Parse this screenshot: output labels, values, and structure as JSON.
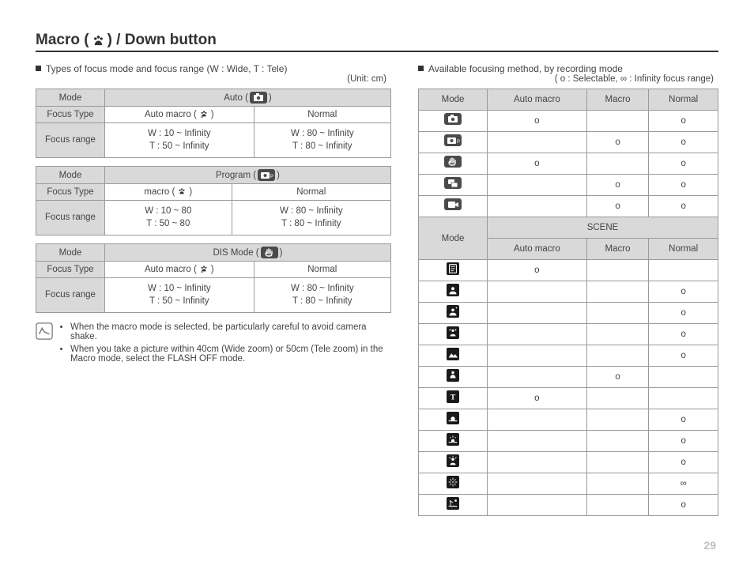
{
  "title_prefix": "Macro (",
  "title_suffix": ") / Down button",
  "page_number": "29",
  "left": {
    "lead": "Types of focus mode and focus range (W : Wide, T : Tele)",
    "unit": "(Unit: cm)",
    "tables": [
      {
        "mode_label": "Mode",
        "mode_val_prefix": "Auto (",
        "mode_val_suffix": ")",
        "ft_label": "Focus Type",
        "ft_a_prefix": "Auto macro (",
        "ft_a_suffix": ")",
        "ft_b": "Normal",
        "fr_label": "Focus range",
        "fr_a1": "W : 10 ~ Infinity",
        "fr_a2": "T  : 50 ~ Infinity",
        "fr_b1": "W : 80 ~ Infinity",
        "fr_b2": "T  : 80 ~ Infinity"
      },
      {
        "mode_label": "Mode",
        "mode_val_prefix": "Program (",
        "mode_val_suffix": ")",
        "ft_label": "Focus Type",
        "ft_a_prefix": "macro (",
        "ft_a_suffix": ")",
        "ft_b": "Normal",
        "fr_label": "Focus range",
        "fr_a1": "W : 10 ~ 80",
        "fr_a2": "T  : 50 ~ 80",
        "fr_b1": "W : 80 ~ Infinity",
        "fr_b2": "T  : 80 ~ Infinity"
      },
      {
        "mode_label": "Mode",
        "mode_val_prefix": "DIS Mode (",
        "mode_val_suffix": ")",
        "ft_label": "Focus Type",
        "ft_a_prefix": "Auto macro (",
        "ft_a_suffix": ")",
        "ft_b": "Normal",
        "fr_label": "Focus range",
        "fr_a1": "W : 10 ~ Infinity",
        "fr_a2": "T  : 50 ~ Infinity",
        "fr_b1": "W : 80 ~ Infinity",
        "fr_b2": "T  : 80 ~ Infinity"
      }
    ],
    "notes": [
      "When the macro mode is selected, be particularly careful to avoid camera shake.",
      "When you take a picture within 40cm (Wide zoom) or 50cm (Tele zoom) in the Macro mode, select the FLASH OFF mode."
    ]
  },
  "right": {
    "lead": "Available focusing method, by recording mode",
    "legend": "( o : Selectable, ∞ : Infinity focus range)",
    "hdr_mode": "Mode",
    "hdr_am": "Auto macro",
    "hdr_m": "Macro",
    "hdr_n": "Normal",
    "scene_label": "SCENE",
    "top_rows": [
      {
        "icon": "camera",
        "am": "o",
        "m": "",
        "n": "o"
      },
      {
        "icon": "camera-p",
        "am": "",
        "m": "o",
        "n": "o"
      },
      {
        "icon": "hand",
        "am": "o",
        "m": "",
        "n": "o"
      },
      {
        "icon": "dual",
        "am": "",
        "m": "o",
        "n": "o"
      },
      {
        "icon": "movie",
        "am": "",
        "m": "o",
        "n": "o"
      }
    ],
    "scene_rows": [
      {
        "icon": "guide",
        "am": "o",
        "m": "",
        "n": ""
      },
      {
        "icon": "portrait",
        "am": "",
        "m": "",
        "n": "o"
      },
      {
        "icon": "night",
        "am": "",
        "m": "",
        "n": "o"
      },
      {
        "icon": "children",
        "am": "",
        "m": "",
        "n": "o"
      },
      {
        "icon": "landscape",
        "am": "",
        "m": "",
        "n": "o"
      },
      {
        "icon": "closeup",
        "am": "",
        "m": "o",
        "n": ""
      },
      {
        "icon": "text",
        "am": "o",
        "m": "",
        "n": ""
      },
      {
        "icon": "sunset",
        "am": "",
        "m": "",
        "n": "o"
      },
      {
        "icon": "dawn",
        "am": "",
        "m": "",
        "n": "o"
      },
      {
        "icon": "backlight",
        "am": "",
        "m": "",
        "n": "o"
      },
      {
        "icon": "firework",
        "am": "",
        "m": "",
        "n": "∞"
      },
      {
        "icon": "beach",
        "am": "",
        "m": "",
        "n": "o"
      }
    ]
  }
}
